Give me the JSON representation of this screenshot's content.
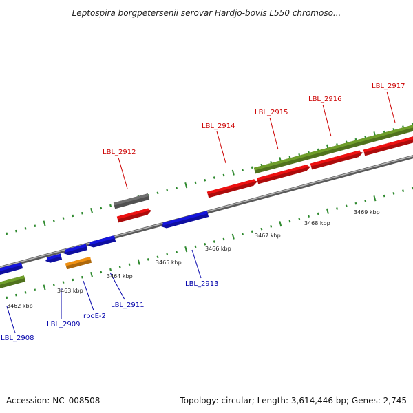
{
  "title": "Leptospira borgpetersenii serovar Hardjo-bovis L550 chromoso...",
  "footer": {
    "accession": "Accession: NC_008508",
    "topology": "Topology: circular; Length: 3,614,446 bp; Genes: 2,745"
  },
  "colors": {
    "backbone": "#8a8a8a",
    "tick": "#2f8a2f",
    "forward_cds": "#ee1111",
    "reverse_cds": "#1515dd",
    "rrna_like": "#f09010",
    "gray_feature": "#707070",
    "olive_feature": "#6f9e2a",
    "label_forward": "#cc0000",
    "label_reverse": "#0000aa"
  },
  "scale_labels": [
    "3462 kbp",
    "3463 kbp",
    "3464 kbp",
    "3465 kbp",
    "3466 kbp",
    "3467 kbp",
    "3468 kbp",
    "3469 kbp"
  ],
  "genes": [
    {
      "name": "LBL_2908",
      "strand": "reverse"
    },
    {
      "name": "LBL_2909",
      "strand": "reverse"
    },
    {
      "name": "rpoE-2",
      "strand": "reverse"
    },
    {
      "name": "LBL_2911",
      "strand": "reverse"
    },
    {
      "name": "LBL_2912",
      "strand": "forward"
    },
    {
      "name": "LBL_2913",
      "strand": "reverse"
    },
    {
      "name": "LBL_2914",
      "strand": "forward"
    },
    {
      "name": "LBL_2915",
      "strand": "forward"
    },
    {
      "name": "LBL_2916",
      "strand": "forward"
    },
    {
      "name": "LBL_2917",
      "strand": "forward"
    }
  ]
}
